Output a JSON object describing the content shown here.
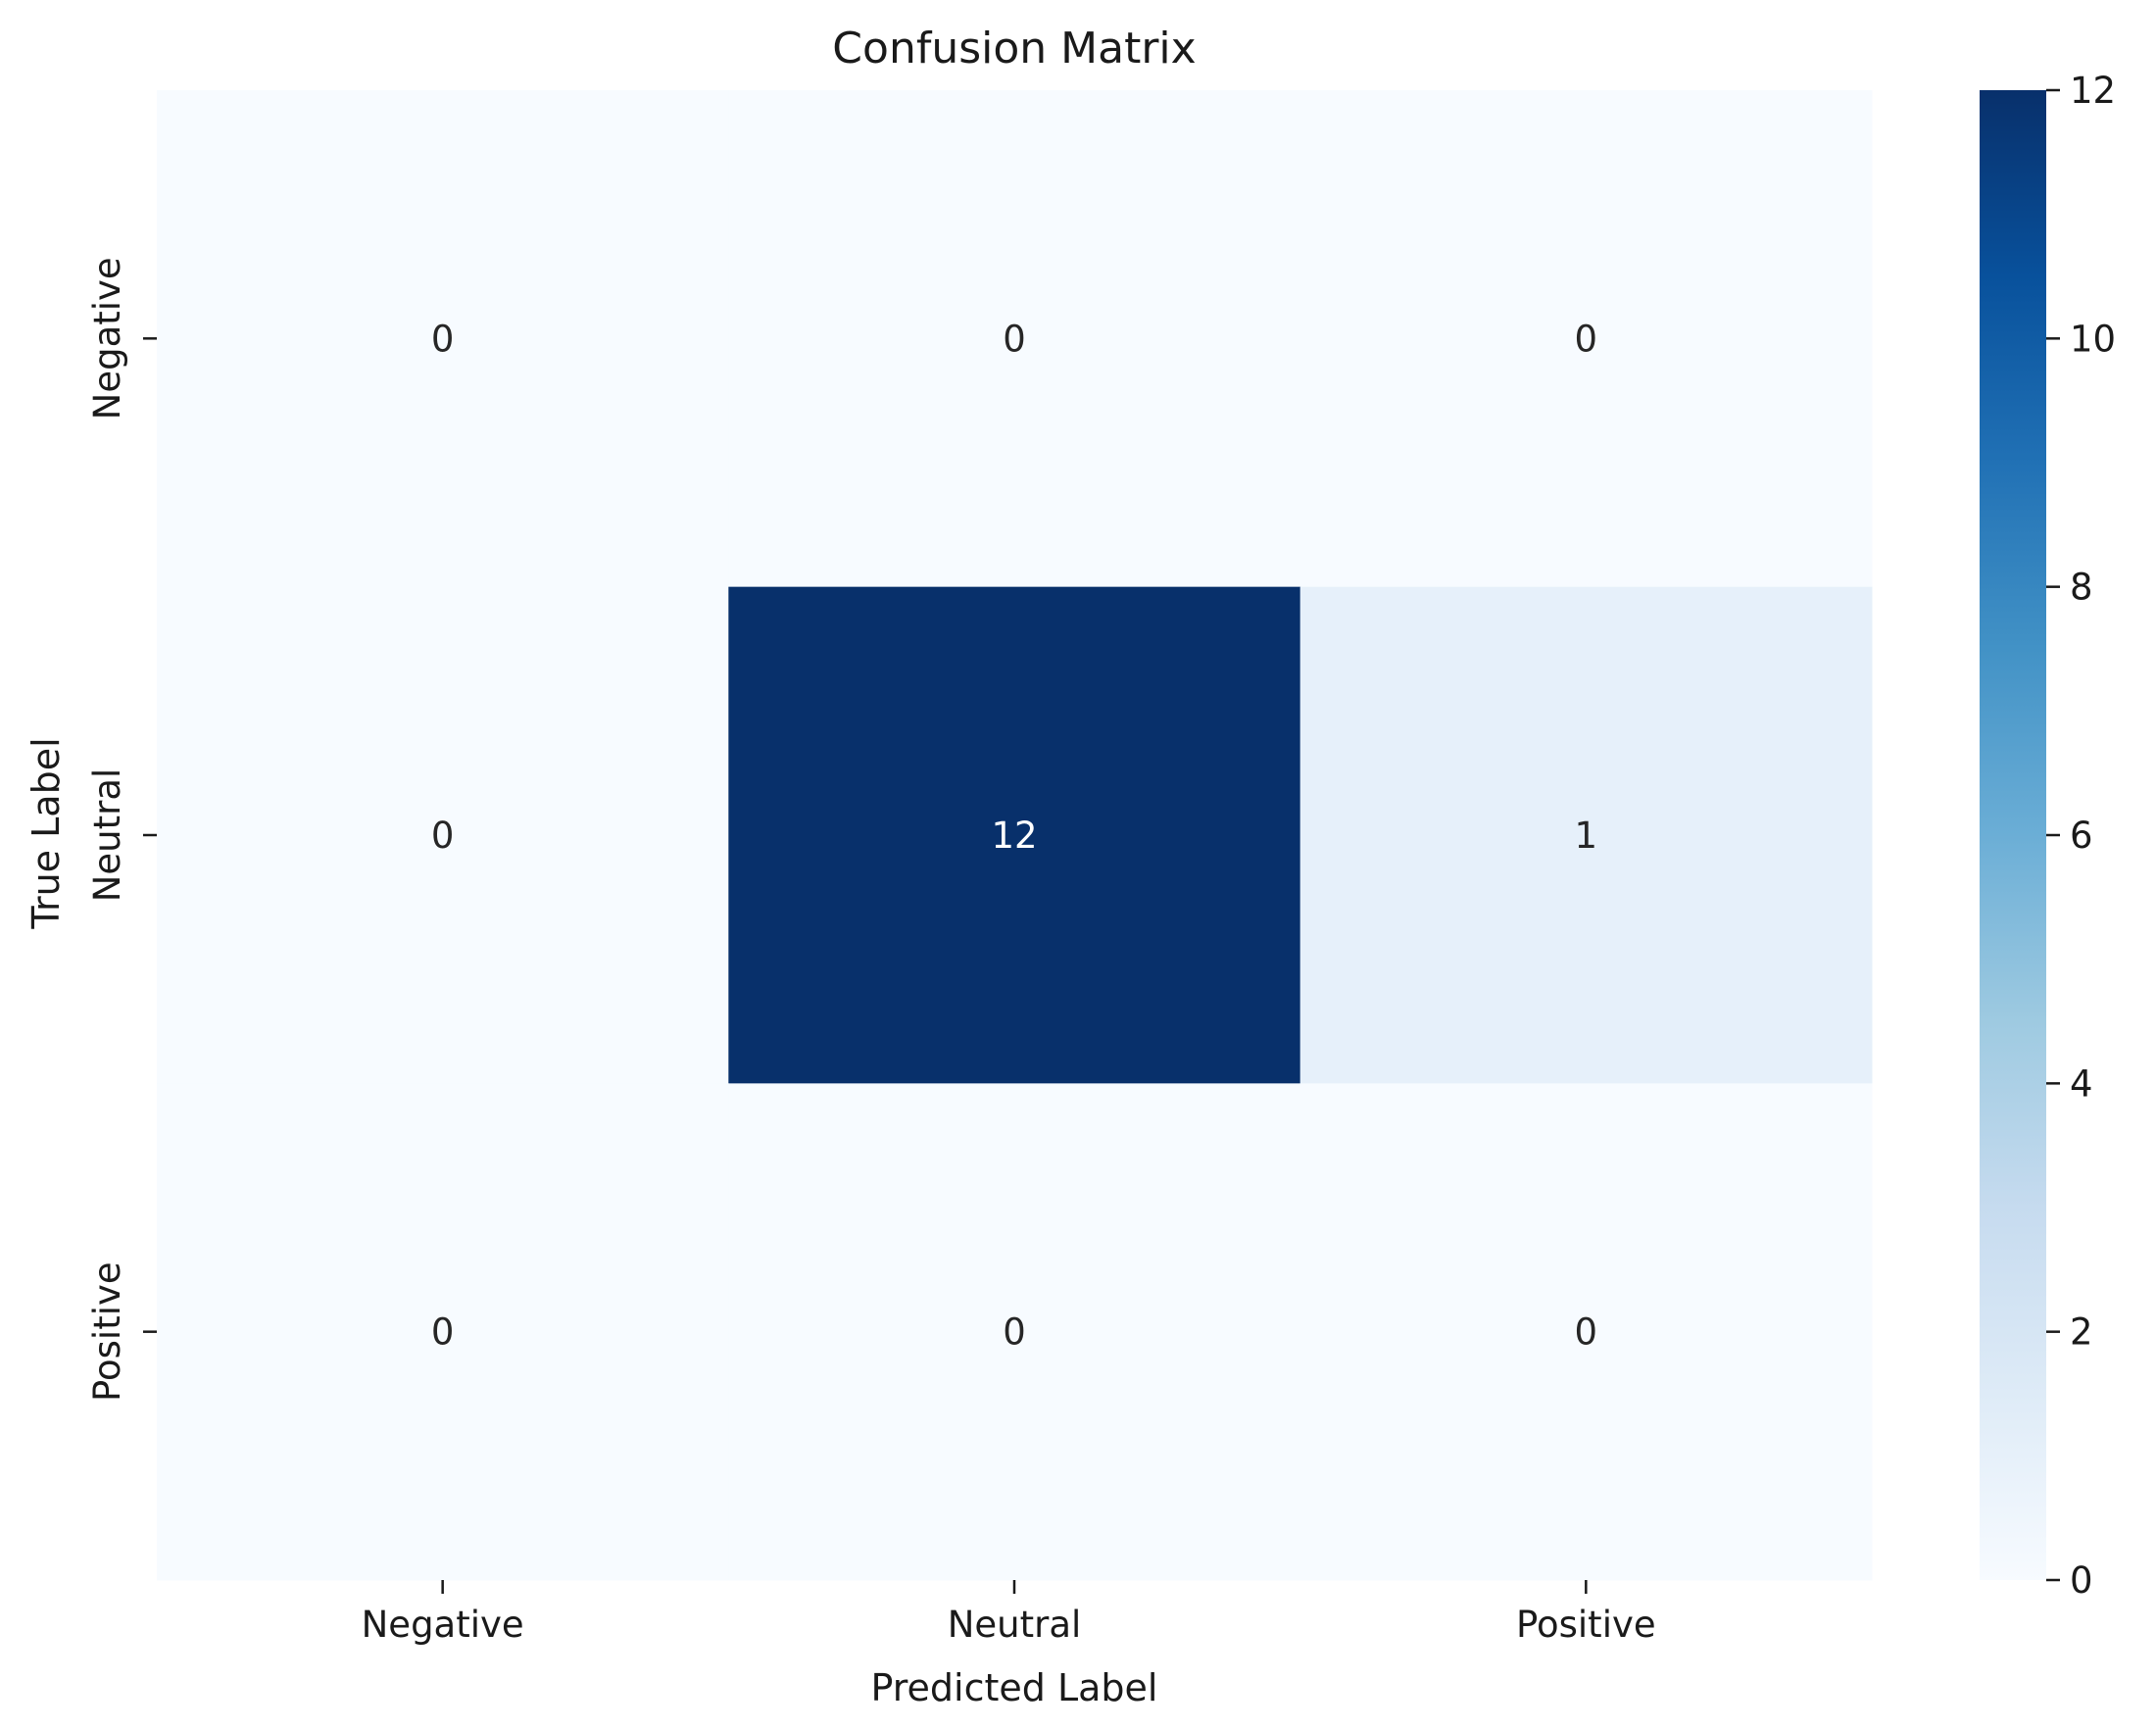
{
  "chart_data": {
    "type": "heatmap",
    "title": "Confusion Matrix",
    "xlabel": "Predicted Label",
    "ylabel": "True Label",
    "x_categories": [
      "Negative",
      "Neutral",
      "Positive"
    ],
    "y_categories": [
      "Negative",
      "Neutral",
      "Positive"
    ],
    "values": [
      [
        0,
        0,
        0
      ],
      [
        0,
        12,
        1
      ],
      [
        0,
        0,
        0
      ]
    ],
    "colormap": "Blues",
    "colorbar": {
      "min": 0,
      "max": 12,
      "ticks": [
        0,
        2,
        4,
        6,
        8,
        10,
        12
      ]
    },
    "grid": false,
    "annotations": true
  }
}
